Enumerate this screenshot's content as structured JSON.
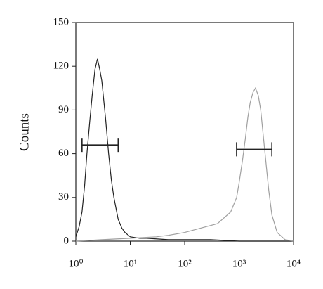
{
  "chart_data": {
    "type": "line",
    "y_label": "Counts",
    "xscale": "log",
    "xlim": [
      1,
      10000
    ],
    "ylim": [
      0,
      150
    ],
    "xticks": [
      {
        "value": 1,
        "label": "10⁰"
      },
      {
        "value": 10,
        "label": "10¹"
      },
      {
        "value": 100,
        "label": "10²"
      },
      {
        "value": 1000,
        "label": "10³"
      },
      {
        "value": 10000,
        "label": "10⁴"
      }
    ],
    "yticks": [
      0,
      30,
      60,
      90,
      120,
      150
    ],
    "series": [
      {
        "color": "#222222",
        "x": [
          1,
          1.15,
          1.3,
          1.45,
          1.6,
          1.8,
          2,
          2.25,
          2.5,
          2.75,
          3,
          3.5,
          4,
          4.5,
          5,
          6,
          7,
          8,
          10,
          15,
          20,
          50,
          100,
          300,
          1000,
          3000,
          10000
        ],
        "values": [
          3,
          10,
          20,
          38,
          60,
          82,
          100,
          118,
          125,
          118,
          110,
          85,
          60,
          42,
          30,
          15,
          9,
          6,
          3,
          2,
          2,
          1,
          1,
          1,
          0,
          0,
          0
        ]
      },
      {
        "color": "#a0a0a0",
        "x": [
          1,
          3,
          10,
          30,
          50,
          100,
          200,
          400,
          700,
          900,
          1000,
          1150,
          1300,
          1450,
          1600,
          1800,
          2000,
          2250,
          2500,
          3000,
          3500,
          4000,
          5000,
          7000,
          10000
        ],
        "values": [
          0,
          1,
          2,
          3,
          4,
          6,
          9,
          12,
          20,
          30,
          40,
          55,
          70,
          85,
          95,
          102,
          105,
          100,
          90,
          60,
          35,
          18,
          6,
          1,
          0
        ]
      }
    ],
    "gates": [
      {
        "x": [
          1.3,
          6
        ],
        "y": 66
      },
      {
        "x": [
          900,
          4000
        ],
        "y": 63
      }
    ]
  }
}
